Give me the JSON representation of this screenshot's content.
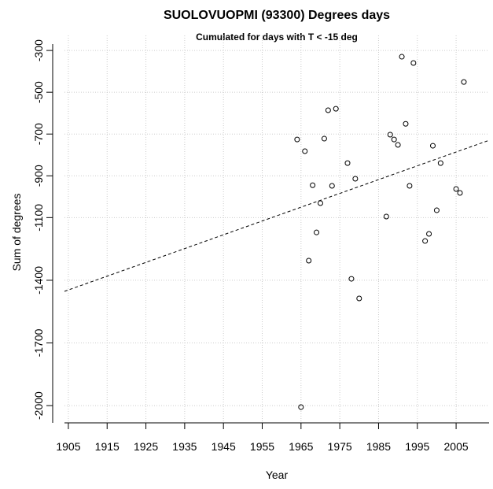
{
  "chart_data": {
    "type": "scatter",
    "title": "SUOLOVUOPMI (93300) Degrees days",
    "subtitle": "Cumulated for days with T < -15 deg",
    "x_label": "Year",
    "y_label": "Sum of degrees",
    "xlim": [
      1904,
      2013.5
    ],
    "ylim": [
      -2075,
      -228
    ],
    "xticks": [
      1905,
      1915,
      1925,
      1935,
      1945,
      1955,
      1965,
      1975,
      1985,
      1995,
      2005
    ],
    "yticks": [
      -300,
      -500,
      -700,
      -900,
      -1100,
      -1400,
      -1700,
      -2000
    ],
    "grid": true,
    "series": [
      {
        "color": "#000000",
        "x": [
          1964,
          1966,
          1968,
          1970,
          1969,
          1967,
          1965,
          1971,
          1972,
          1974,
          1973,
          1977,
          1979,
          1978,
          1980,
          1987,
          1988,
          1989,
          1990,
          1991,
          1992,
          1993,
          1994,
          1997,
          1998,
          1999,
          2000,
          2001,
          2005,
          2006,
          2007
        ],
        "values": [
          -726,
          -782,
          -945,
          -1031,
          -1171,
          -1306,
          -2007,
          -722,
          -586,
          -579,
          -948,
          -839,
          -914,
          -1393,
          -1487,
          -1095,
          -703,
          -726,
          -752,
          -330,
          -651,
          -948,
          -360,
          -1212,
          -1178,
          -756,
          -1065,
          -839,
          -963,
          -982,
          -451
        ]
      },
      {
        "type": "line",
        "color": "#000000",
        "dashed": true,
        "x": [
          1904,
          2013.5
        ],
        "values": [
          -1453,
          -730
        ]
      }
    ]
  }
}
